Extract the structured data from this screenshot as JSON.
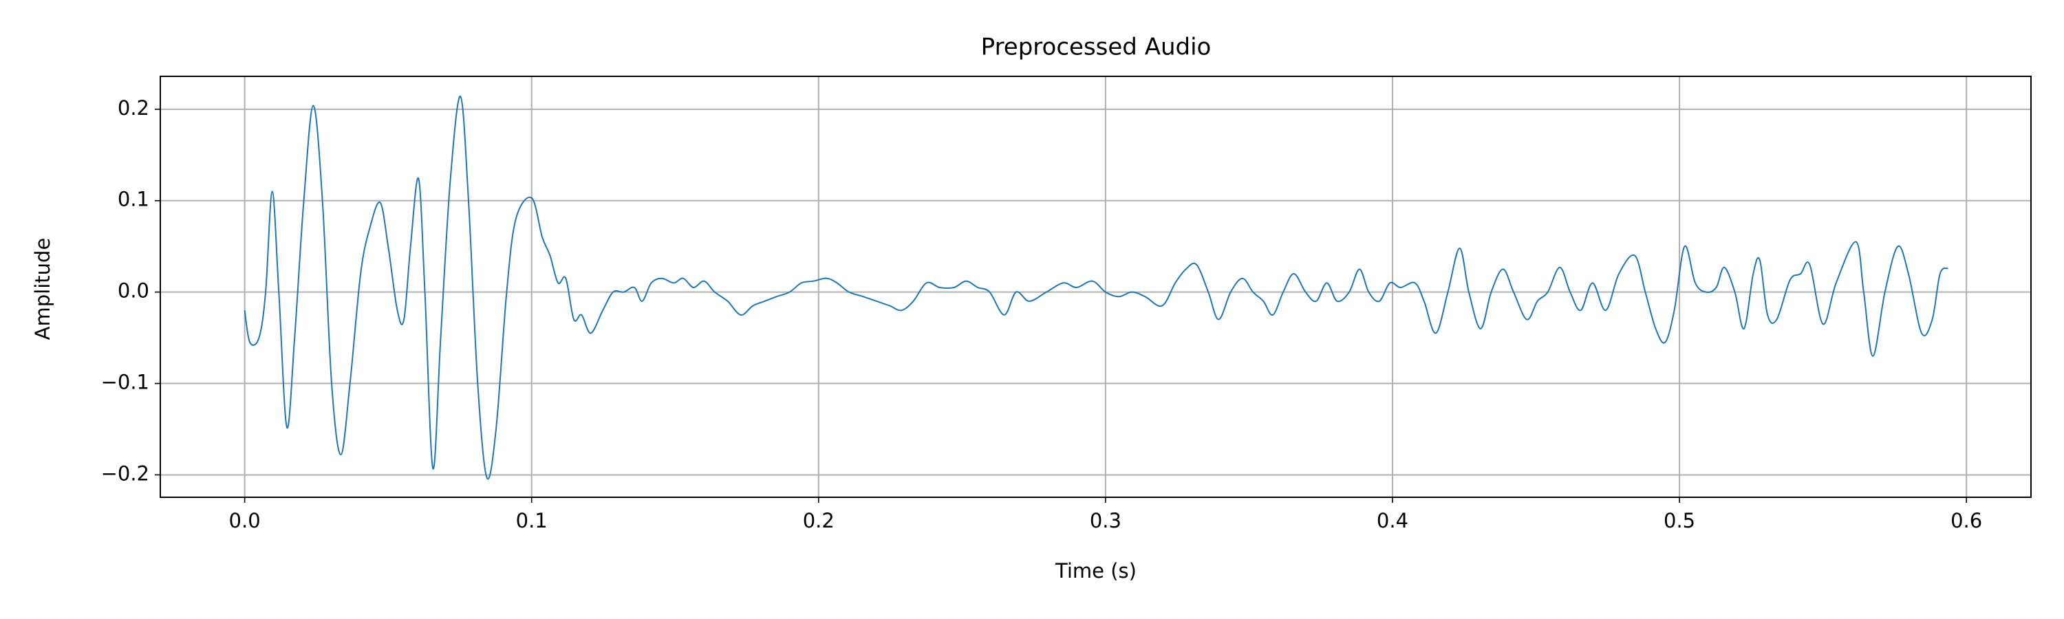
{
  "chart_data": {
    "type": "line",
    "title": "Preprocessed Audio",
    "x_label": "Time (s)",
    "y_label": "Amplitude",
    "x": [
      0,
      0.0018,
      0.005,
      0.0073,
      0.0096,
      0.0119,
      0.0147,
      0.0174,
      0.0206,
      0.0239,
      0.0271,
      0.0303,
      0.0335,
      0.0367,
      0.0404,
      0.0436,
      0.0472,
      0.05,
      0.0532,
      0.0555,
      0.0578,
      0.0606,
      0.0628,
      0.0656,
      0.0683,
      0.0716,
      0.0752,
      0.078,
      0.0812,
      0.0844,
      0.0876,
      0.0913,
      0.0945,
      0.1,
      0.1037,
      0.1064,
      0.1092,
      0.1119,
      0.1147,
      0.1174,
      0.1206,
      0.1248,
      0.1284,
      0.1321,
      0.1358,
      0.1385,
      0.1417,
      0.1454,
      0.1495,
      0.1528,
      0.1564,
      0.1601,
      0.1638,
      0.1683,
      0.1729,
      0.1771,
      0.1812,
      0.1853,
      0.1899,
      0.194,
      0.1982,
      0.2028,
      0.2064,
      0.2106,
      0.2156,
      0.2202,
      0.2248,
      0.2289,
      0.233,
      0.2376,
      0.2422,
      0.2472,
      0.2514,
      0.2555,
      0.2596,
      0.2647,
      0.2688,
      0.2734,
      0.2794,
      0.2853,
      0.2899,
      0.2954,
      0.3,
      0.3046,
      0.3092,
      0.3138,
      0.3197,
      0.3243,
      0.328,
      0.3317,
      0.3358,
      0.3394,
      0.3436,
      0.3477,
      0.3514,
      0.355,
      0.3583,
      0.3619,
      0.3656,
      0.3697,
      0.3734,
      0.3771,
      0.3807,
      0.3849,
      0.3885,
      0.3917,
      0.3954,
      0.3991,
      0.4028,
      0.4078,
      0.411,
      0.4151,
      0.4193,
      0.4234,
      0.4266,
      0.4307,
      0.4344,
      0.4385,
      0.4422,
      0.4468,
      0.4505,
      0.4541,
      0.4583,
      0.4619,
      0.4656,
      0.4697,
      0.4743,
      0.4789,
      0.4844,
      0.4881,
      0.4917,
      0.495,
      0.4982,
      0.5018,
      0.5055,
      0.5092,
      0.5128,
      0.5156,
      0.5193,
      0.5225,
      0.5257,
      0.528,
      0.5307,
      0.5339,
      0.5385,
      0.5422,
      0.5454,
      0.55,
      0.5546,
      0.5615,
      0.5642,
      0.5674,
      0.5716,
      0.5761,
      0.5798,
      0.5844,
      0.5881,
      0.5908,
      0.5936
    ],
    "series": [
      {
        "color": "#1f77b4",
        "values": [
          -0.02,
          -0.055,
          -0.05,
          0.0,
          0.11,
          0.0,
          -0.148,
          -0.05,
          0.1,
          0.204,
          0.1,
          -0.1,
          -0.178,
          -0.1,
          0.02,
          0.07,
          0.098,
          0.05,
          -0.02,
          -0.03,
          0.05,
          0.124,
          0.0,
          -0.193,
          -0.05,
          0.12,
          0.214,
          0.1,
          -0.1,
          -0.203,
          -0.15,
          0.0,
          0.08,
          0.103,
          0.06,
          0.04,
          0.01,
          0.015,
          -0.03,
          -0.025,
          -0.045,
          -0.02,
          0.0,
          0.0,
          0.005,
          -0.01,
          0.01,
          0.015,
          0.01,
          0.015,
          0.005,
          0.012,
          0.0,
          -0.01,
          -0.025,
          -0.015,
          -0.01,
          -0.005,
          0.0,
          0.01,
          0.012,
          0.015,
          0.01,
          0.0,
          -0.005,
          -0.01,
          -0.015,
          -0.02,
          -0.01,
          0.01,
          0.005,
          0.005,
          0.012,
          0.005,
          0.0,
          -0.025,
          0.0,
          -0.01,
          0.0,
          0.01,
          0.005,
          0.012,
          0.0,
          -0.005,
          0.0,
          -0.005,
          -0.015,
          0.01,
          0.025,
          0.03,
          0.0,
          -0.03,
          0.0,
          0.015,
          0.0,
          -0.01,
          -0.025,
          0.0,
          0.02,
          0.0,
          -0.01,
          0.01,
          -0.01,
          0.0,
          0.025,
          0.0,
          -0.01,
          0.01,
          0.005,
          0.01,
          -0.01,
          -0.045,
          0.0,
          0.048,
          0.0,
          -0.04,
          0.0,
          0.025,
          0.0,
          -0.03,
          -0.01,
          0.0,
          0.027,
          0.0,
          -0.02,
          0.01,
          -0.02,
          0.02,
          0.04,
          0.0,
          -0.04,
          -0.055,
          -0.02,
          0.05,
          0.01,
          0.0,
          0.005,
          0.027,
          0.0,
          -0.04,
          0.02,
          0.035,
          -0.025,
          -0.03,
          0.013,
          0.02,
          0.03,
          -0.035,
          0.01,
          0.055,
          0.0,
          -0.07,
          0.0,
          0.05,
          0.02,
          -0.045,
          -0.03,
          0.02,
          0.026
        ]
      }
    ],
    "xlim": [
      -0.0294,
      0.6225
    ],
    "ylim": [
      -0.2245,
      0.236
    ],
    "xticks": [
      {
        "value": 0,
        "label": "0.0"
      },
      0.1,
      0.2,
      0.3,
      0.4,
      0.5,
      0.6
    ],
    "yticks": [
      {
        "value": -0.2,
        "label": "−0.2"
      },
      {
        "value": -0.1,
        "label": "−0.1"
      },
      {
        "value": 0,
        "label": "0.0"
      },
      0.1,
      0.2
    ],
    "grid": true
  }
}
